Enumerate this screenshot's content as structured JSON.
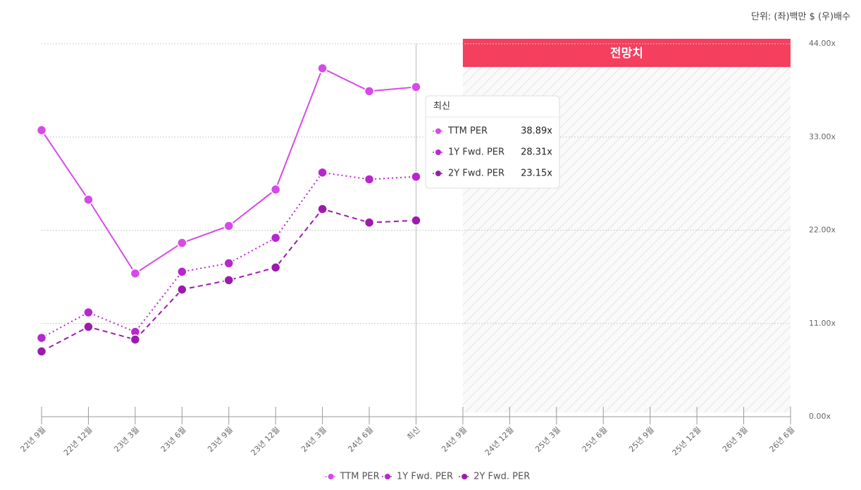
{
  "chart_data": {
    "type": "line",
    "unit_note": "단위: (좌)백만 $ (우)배수",
    "categories": [
      "22년 9월",
      "22년 12월",
      "23년 3월",
      "23년 6월",
      "23년 9월",
      "23년 12월",
      "24년 3월",
      "24년 6월",
      "최신",
      "24년 9월",
      "24년 12월",
      "25년 3월",
      "25년 6월",
      "25년 9월",
      "25년 12월",
      "26년 3월",
      "26년 6월"
    ],
    "series": [
      {
        "name": "TTM PER",
        "color": "#d64ae8",
        "dash": "solid",
        "values": [
          33.8,
          25.6,
          16.9,
          20.5,
          22.5,
          26.8,
          41.1,
          38.4,
          38.89,
          null,
          null,
          null,
          null,
          null,
          null,
          null,
          null
        ],
        "value_labels": [
          null,
          null,
          null,
          null,
          null,
          null,
          null,
          null,
          "38.89x",
          null,
          null,
          null,
          null,
          null,
          null,
          null,
          null
        ]
      },
      {
        "name": "1Y Fwd. PER",
        "color": "#b925d1",
        "dash": "dotted",
        "values": [
          9.3,
          12.3,
          10.0,
          17.1,
          18.1,
          21.1,
          28.8,
          28.0,
          28.31,
          null,
          null,
          null,
          null,
          null,
          null,
          null,
          null
        ],
        "value_labels": [
          null,
          null,
          null,
          null,
          null,
          null,
          null,
          null,
          "28.31x",
          null,
          null,
          null,
          null,
          null,
          null,
          null,
          null
        ]
      },
      {
        "name": "2Y Fwd. PER",
        "color": "#9c1bad",
        "dash": "dashed",
        "values": [
          7.7,
          10.6,
          9.1,
          15.0,
          16.1,
          17.6,
          24.5,
          22.9,
          23.15,
          null,
          null,
          null,
          null,
          null,
          null,
          null,
          null
        ],
        "value_labels": [
          null,
          null,
          null,
          null,
          null,
          null,
          null,
          null,
          "23.15x",
          null,
          null,
          null,
          null,
          null,
          null,
          null,
          null
        ]
      }
    ],
    "ylim": [
      0,
      44
    ],
    "yticks": [
      {
        "value": 0,
        "label": "0.00x"
      },
      {
        "value": 11,
        "label": "11.00x"
      },
      {
        "value": 22,
        "label": "22.00x"
      },
      {
        "value": 33,
        "label": "33.00x"
      },
      {
        "value": 44,
        "label": "44.00x"
      }
    ],
    "grid": true,
    "forecast": {
      "label": "전망치",
      "start_index": 9
    },
    "tooltip": {
      "title": "최신",
      "index": 8
    }
  }
}
